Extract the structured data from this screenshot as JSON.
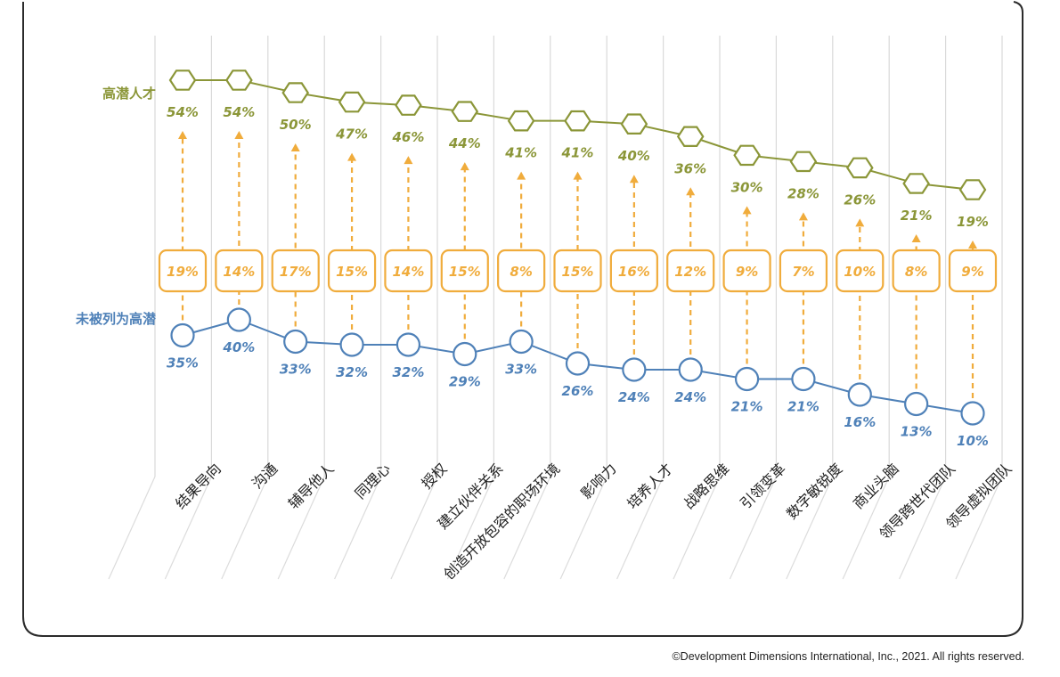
{
  "chart_data": {
    "type": "line",
    "categories": [
      "结果导向",
      "沟通",
      "辅导他人",
      "同理心",
      "授权",
      "建立伙伴关系",
      "创造开放包容的职场环境",
      "影响力",
      "培养人才",
      "战略思维",
      "引领变革",
      "数字敏锐度",
      "商业头脑",
      "领导跨世代团队",
      "领导虚拟团队"
    ],
    "series": [
      {
        "name": "高潜人才",
        "values": [
          54,
          54,
          50,
          47,
          46,
          44,
          41,
          41,
          40,
          36,
          30,
          28,
          26,
          21,
          19
        ],
        "labels": [
          "54%",
          "54%",
          "50%",
          "47%",
          "46%",
          "44%",
          "41%",
          "41%",
          "40%",
          "36%",
          "30%",
          "28%",
          "26%",
          "21%",
          "19%"
        ],
        "color": "#8b9638",
        "marker": "hexagon"
      },
      {
        "name": "未被列为高潜",
        "values": [
          35,
          40,
          33,
          32,
          32,
          29,
          33,
          26,
          24,
          24,
          21,
          21,
          16,
          13,
          10
        ],
        "labels": [
          "35%",
          "40%",
          "33%",
          "32%",
          "32%",
          "29%",
          "33%",
          "26%",
          "24%",
          "24%",
          "21%",
          "21%",
          "16%",
          "13%",
          "10%"
        ],
        "color": "#4f81b8",
        "marker": "circle"
      }
    ],
    "gap": {
      "values": [
        19,
        14,
        17,
        15,
        14,
        15,
        8,
        15,
        16,
        12,
        9,
        7,
        10,
        8,
        9
      ],
      "labels": [
        "19%",
        "14%",
        "17%",
        "15%",
        "14%",
        "15%",
        "8%",
        "15%",
        "16%",
        "12%",
        "9%",
        "7%",
        "10%",
        "8%",
        "9%"
      ],
      "color": "#f0ac3c"
    },
    "title": "",
    "xlabel": "",
    "ylabel": "",
    "ylim": [
      0,
      60
    ],
    "grid": "vertical"
  },
  "copyright": "©Development Dimensions International, Inc., 2021. All rights reserved."
}
